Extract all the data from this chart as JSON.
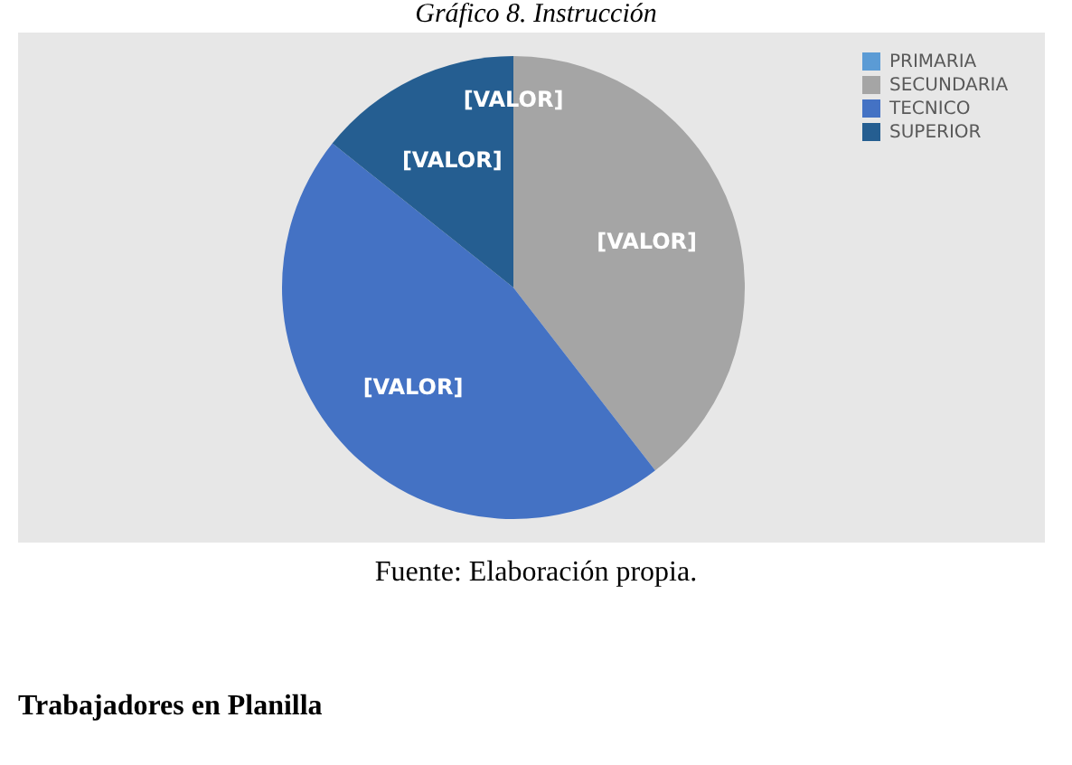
{
  "chart_data": {
    "type": "pie",
    "title": "Gráfico 8. Instrucción",
    "categories": [
      "PRIMARIA",
      "SECUNDARIA",
      "TECNICO",
      "SUPERIOR"
    ],
    "values": [
      0,
      39.5,
      46.2,
      14.3
    ],
    "colors": [
      "#5b9bd5",
      "#a5a5a5",
      "#4472c4",
      "#255e91"
    ],
    "value_labels": [
      "[VALOR]",
      "[VALOR]",
      "[VALOR]",
      "[VALOR]"
    ],
    "legend": "right",
    "annotations": [
      "Fuente: Elaboración propia.",
      "Trabajadores en Planilla"
    ]
  }
}
